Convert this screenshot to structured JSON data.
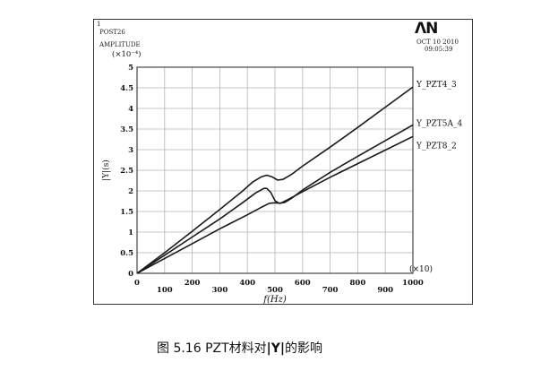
{
  "header": {
    "index": "1",
    "post": "POST26",
    "quantity": "AMPLITUDE",
    "logo": "ΛN",
    "date": "OCT 10 2010",
    "time": "09:05:39"
  },
  "caption": {
    "prefix": "图 5.16 PZT材料对",
    "symbol": "|Y|",
    "suffix": "的影响"
  },
  "chart_data": {
    "type": "line",
    "title": "",
    "xlabel": "f(Hz)",
    "x_multiplier": "(×10)",
    "ylabel": "|Y|(s)",
    "y_multiplier": "(×10⁻⁴)",
    "xlim": [
      0,
      1000
    ],
    "ylim": [
      0,
      5
    ],
    "grid": true,
    "x_ticks": [
      0,
      100,
      200,
      300,
      400,
      500,
      600,
      700,
      800,
      900,
      1000
    ],
    "y_ticks": [
      0,
      0.5,
      1,
      1.5,
      2,
      2.5,
      3,
      3.5,
      4,
      4.5,
      5
    ],
    "series": [
      {
        "name": "Y_PZT4_3",
        "points": [
          [
            0,
            0
          ],
          [
            100,
            0.5
          ],
          [
            200,
            1.02
          ],
          [
            300,
            1.55
          ],
          [
            380,
            1.98
          ],
          [
            420,
            2.22
          ],
          [
            450,
            2.34
          ],
          [
            470,
            2.38
          ],
          [
            490,
            2.34
          ],
          [
            510,
            2.26
          ],
          [
            530,
            2.28
          ],
          [
            560,
            2.4
          ],
          [
            600,
            2.6
          ],
          [
            700,
            3.06
          ],
          [
            800,
            3.54
          ],
          [
            900,
            4.03
          ],
          [
            1000,
            4.52
          ]
        ]
      },
      {
        "name": "Y_PZT5A_4",
        "points": [
          [
            0,
            0
          ],
          [
            100,
            0.44
          ],
          [
            200,
            0.88
          ],
          [
            300,
            1.32
          ],
          [
            380,
            1.7
          ],
          [
            430,
            1.95
          ],
          [
            460,
            2.06
          ],
          [
            470,
            2.06
          ],
          [
            485,
            1.96
          ],
          [
            500,
            1.76
          ],
          [
            515,
            1.7
          ],
          [
            535,
            1.72
          ],
          [
            560,
            1.82
          ],
          [
            600,
            2.02
          ],
          [
            700,
            2.45
          ],
          [
            800,
            2.84
          ],
          [
            900,
            3.22
          ],
          [
            1000,
            3.6
          ]
        ]
      },
      {
        "name": "Y_PZT8_2",
        "points": [
          [
            0,
            0
          ],
          [
            100,
            0.36
          ],
          [
            200,
            0.72
          ],
          [
            300,
            1.08
          ],
          [
            400,
            1.42
          ],
          [
            450,
            1.6
          ],
          [
            480,
            1.7
          ],
          [
            500,
            1.71
          ],
          [
            520,
            1.7
          ],
          [
            550,
            1.8
          ],
          [
            600,
            1.98
          ],
          [
            700,
            2.33
          ],
          [
            800,
            2.66
          ],
          [
            900,
            2.99
          ],
          [
            1000,
            3.32
          ]
        ]
      }
    ]
  }
}
